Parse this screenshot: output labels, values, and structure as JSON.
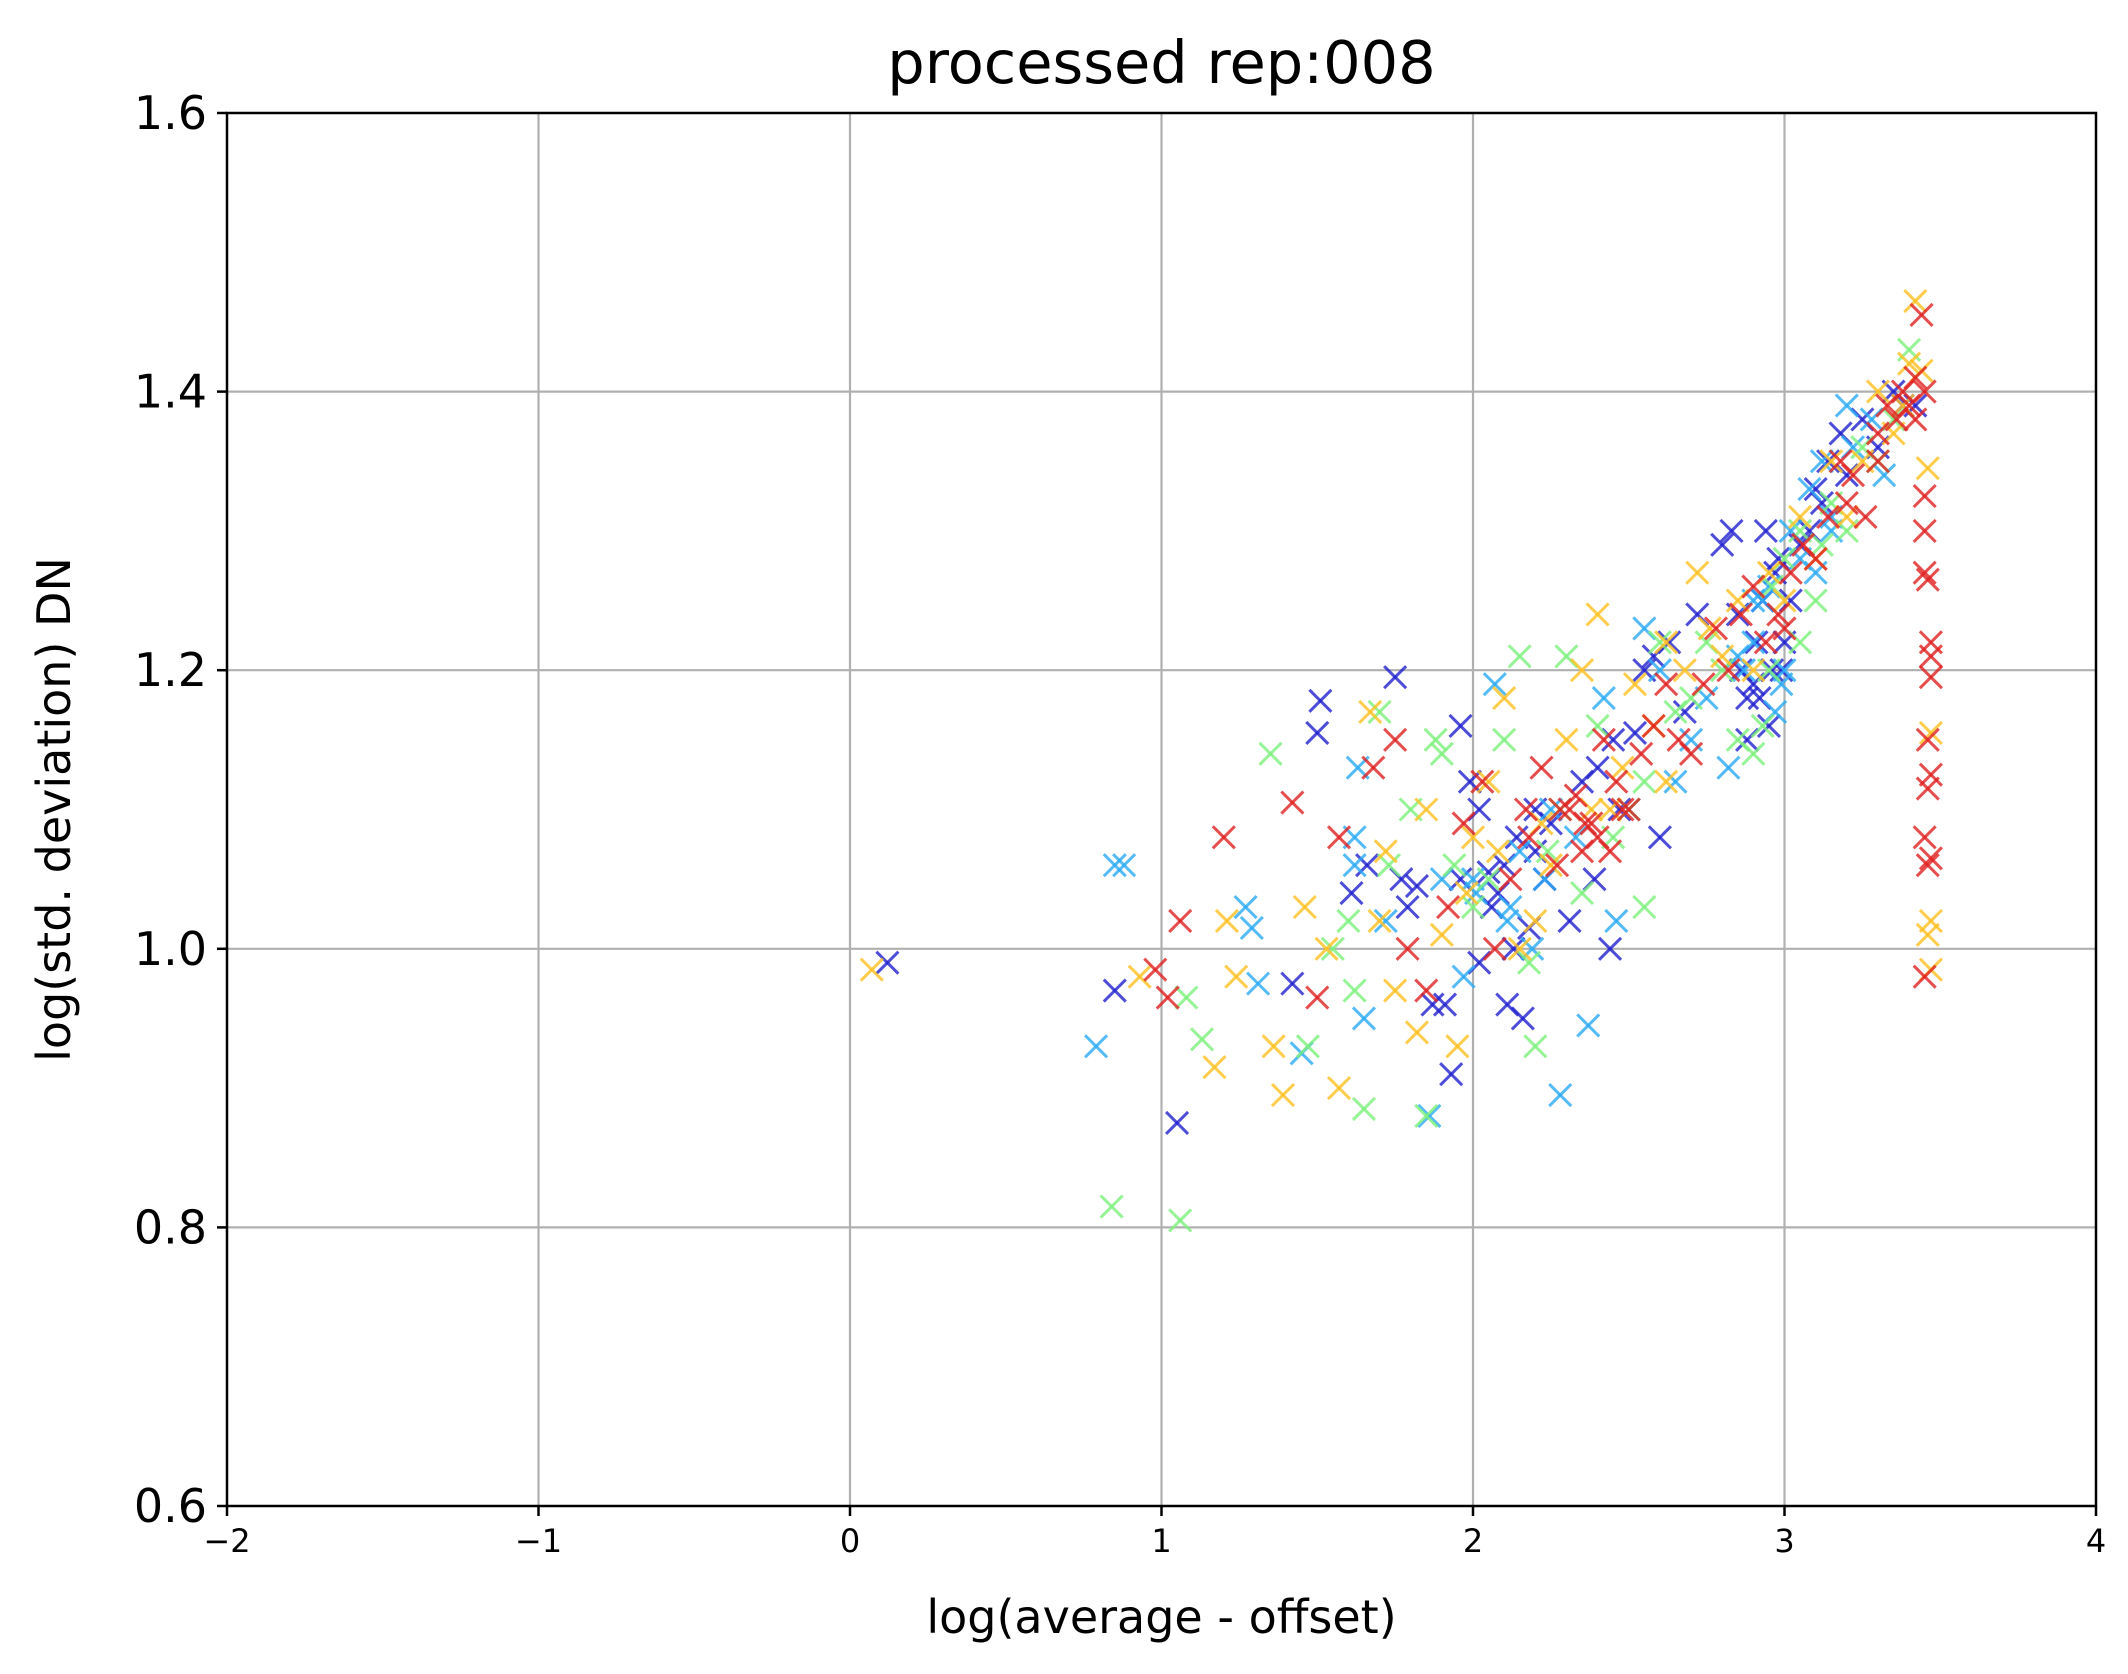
{
  "chart_data": {
    "type": "scatter",
    "title": "processed rep:008",
    "xlabel": "log(average - offset)",
    "ylabel": "log(std. deviation) DN",
    "xlim": [
      -2,
      4
    ],
    "ylim": [
      0.6,
      1.6
    ],
    "xticks": [
      -2,
      -1,
      0,
      1,
      2,
      3,
      4
    ],
    "xtick_labels": [
      "−2",
      "−1",
      "0",
      "1",
      "2",
      "3",
      "4"
    ],
    "yticks": [
      0.6,
      0.8,
      1.0,
      1.2,
      1.4,
      1.6
    ],
    "ytick_labels": [
      "0.6",
      "0.8",
      "1.0",
      "1.2",
      "1.4",
      "1.6"
    ],
    "grid": true,
    "legend": "none",
    "marker": "x",
    "colors": [
      "#2020d0",
      "#2aaaf5",
      "#7cf07c",
      "#ffc020",
      "#e02020"
    ],
    "series": [
      {
        "color": "#2020d0",
        "x": [
          0.12,
          0.85,
          1.05,
          1.42,
          1.5,
          1.51,
          1.61,
          1.66,
          1.75,
          1.77,
          1.79,
          1.82,
          1.87,
          1.93,
          1.96,
          1.99,
          2.02,
          2.05,
          2.08,
          2.1,
          2.11,
          2.13,
          2.16,
          2.18,
          2.2,
          2.25,
          2.31,
          2.35,
          2.39,
          2.44,
          2.47,
          2.52,
          2.55,
          2.58,
          2.6,
          2.63,
          2.68,
          2.72,
          2.8,
          2.83,
          2.85,
          2.86,
          2.88,
          2.9,
          2.91,
          2.93,
          2.94,
          2.95,
          2.96,
          2.97,
          2.98,
          3.0,
          3.02,
          3.05,
          3.08,
          3.1,
          3.14,
          3.18,
          3.2,
          3.25,
          3.3,
          3.35,
          3.38,
          3.42,
          1.96,
          2.06,
          2.14,
          2.23,
          2.88,
          2.92,
          2.99,
          3.12,
          2.02,
          1.91,
          2.2,
          2.4,
          2.45
        ],
        "y": [
          0.99,
          0.97,
          0.875,
          0.975,
          1.155,
          1.178,
          1.04,
          1.06,
          1.195,
          1.05,
          1.03,
          1.045,
          0.96,
          0.91,
          1.16,
          1.12,
          1.1,
          1.055,
          1.04,
          1.06,
          0.96,
          1.0,
          0.95,
          1.015,
          1.07,
          1.09,
          1.02,
          1.12,
          1.05,
          1.0,
          1.1,
          1.155,
          1.2,
          1.21,
          1.08,
          1.22,
          1.17,
          1.24,
          1.29,
          1.3,
          1.24,
          1.2,
          1.18,
          1.19,
          1.22,
          1.25,
          1.3,
          1.16,
          1.2,
          1.27,
          1.28,
          1.22,
          1.25,
          1.29,
          1.3,
          1.33,
          1.35,
          1.37,
          1.34,
          1.38,
          1.36,
          1.4,
          1.39,
          1.39,
          1.05,
          1.03,
          1.08,
          1.05,
          1.15,
          1.18,
          1.2,
          1.32,
          0.99,
          0.96,
          1.1,
          1.13,
          1.15
        ]
      },
      {
        "color": "#2aaaf5",
        "x": [
          0.79,
          0.85,
          0.88,
          1.27,
          1.29,
          1.31,
          1.45,
          1.62,
          1.63,
          1.65,
          1.72,
          1.86,
          1.9,
          1.97,
          2.01,
          2.07,
          2.11,
          2.15,
          2.19,
          2.23,
          2.28,
          2.33,
          2.37,
          2.42,
          2.46,
          2.5,
          2.55,
          2.6,
          2.65,
          2.7,
          2.75,
          2.82,
          2.87,
          2.9,
          2.93,
          2.95,
          2.97,
          2.99,
          3.02,
          3.05,
          3.08,
          3.12,
          3.15,
          3.2,
          3.22,
          3.28,
          3.32,
          1.62,
          2.0,
          2.12,
          2.25,
          2.85,
          2.9,
          3.0,
          3.1,
          3.15
        ],
        "y": [
          0.93,
          1.06,
          1.06,
          1.03,
          1.015,
          0.975,
          0.925,
          1.06,
          1.13,
          0.95,
          1.02,
          0.88,
          1.05,
          0.98,
          1.04,
          1.19,
          1.02,
          1.07,
          1.0,
          1.05,
          0.895,
          1.08,
          0.945,
          1.18,
          1.02,
          1.1,
          1.23,
          1.2,
          1.12,
          1.15,
          1.18,
          1.13,
          1.2,
          1.22,
          1.25,
          1.26,
          1.17,
          1.19,
          1.3,
          1.28,
          1.33,
          1.35,
          1.3,
          1.39,
          1.36,
          1.38,
          1.34,
          1.08,
          1.05,
          1.03,
          1.1,
          1.21,
          1.25,
          1.2,
          1.27,
          1.31
        ]
      },
      {
        "color": "#7cf07c",
        "x": [
          0.84,
          1.06,
          1.08,
          1.13,
          1.35,
          1.47,
          1.55,
          1.62,
          1.65,
          1.7,
          1.73,
          1.8,
          1.85,
          1.88,
          1.9,
          1.94,
          2.0,
          2.05,
          2.1,
          2.15,
          2.2,
          2.24,
          2.3,
          2.35,
          2.4,
          2.45,
          2.5,
          2.55,
          2.6,
          2.65,
          2.7,
          2.75,
          2.8,
          2.85,
          2.9,
          2.93,
          2.96,
          3.0,
          3.05,
          3.1,
          3.15,
          3.2,
          3.25,
          3.3,
          3.35,
          3.4,
          1.6,
          2.18,
          2.28,
          2.55,
          2.95,
          3.05,
          3.12
        ],
        "y": [
          0.815,
          0.805,
          0.965,
          0.935,
          1.14,
          0.93,
          1.0,
          0.97,
          0.885,
          1.17,
          1.06,
          1.1,
          0.88,
          1.15,
          1.14,
          1.06,
          1.03,
          1.05,
          1.15,
          1.21,
          0.93,
          1.07,
          1.21,
          1.04,
          1.16,
          1.08,
          1.1,
          1.03,
          1.22,
          1.17,
          1.18,
          1.22,
          1.2,
          1.15,
          1.14,
          1.16,
          1.26,
          1.28,
          1.3,
          1.25,
          1.32,
          1.3,
          1.36,
          1.35,
          1.38,
          1.43,
          1.02,
          0.99,
          1.1,
          1.12,
          1.2,
          1.22,
          1.29
        ]
      },
      {
        "color": "#ffc020",
        "x": [
          0.07,
          0.93,
          1.17,
          1.21,
          1.24,
          1.36,
          1.39,
          1.46,
          1.53,
          1.57,
          1.67,
          1.72,
          1.75,
          1.82,
          1.85,
          1.9,
          1.95,
          2.0,
          2.05,
          2.1,
          2.15,
          2.2,
          2.25,
          2.3,
          2.35,
          2.4,
          2.44,
          2.48,
          2.52,
          2.58,
          2.62,
          2.68,
          2.72,
          2.76,
          2.8,
          2.85,
          2.9,
          2.95,
          3.0,
          3.05,
          3.1,
          3.15,
          3.2,
          3.25,
          3.3,
          3.35,
          3.38,
          3.4,
          3.42,
          3.44,
          3.46,
          3.47,
          3.47,
          3.46,
          3.47,
          1.7,
          1.98,
          2.08,
          2.22,
          2.38,
          2.62
        ],
        "y": [
          0.985,
          0.98,
          0.915,
          1.02,
          0.98,
          0.93,
          0.895,
          1.03,
          1.0,
          0.9,
          1.17,
          1.07,
          0.97,
          0.94,
          1.1,
          1.01,
          0.93,
          1.08,
          1.12,
          1.18,
          1.0,
          1.02,
          1.06,
          1.15,
          1.2,
          1.24,
          1.1,
          1.13,
          1.19,
          1.16,
          1.22,
          1.2,
          1.27,
          1.23,
          1.21,
          1.25,
          1.2,
          1.27,
          1.25,
          1.31,
          1.28,
          1.35,
          1.31,
          1.35,
          1.4,
          1.37,
          1.39,
          1.42,
          1.465,
          1.415,
          1.345,
          1.155,
          1.02,
          1.01,
          0.985,
          1.02,
          1.04,
          1.07,
          1.09,
          1.1,
          1.12
        ]
      },
      {
        "color": "#e02020",
        "x": [
          0.98,
          1.02,
          1.06,
          1.2,
          1.42,
          1.5,
          1.57,
          1.68,
          1.75,
          1.79,
          1.85,
          1.92,
          1.97,
          2.03,
          2.07,
          2.12,
          2.17,
          2.22,
          2.27,
          2.31,
          2.35,
          2.38,
          2.42,
          2.46,
          2.5,
          2.54,
          2.58,
          2.62,
          2.66,
          2.7,
          2.74,
          2.78,
          2.82,
          2.86,
          2.9,
          2.94,
          2.98,
          3.02,
          3.06,
          3.1,
          3.14,
          3.18,
          3.22,
          3.26,
          3.3,
          3.33,
          3.36,
          3.38,
          3.4,
          3.42,
          3.44,
          3.45,
          3.45,
          3.45,
          3.46,
          3.47,
          3.47,
          3.46,
          3.47,
          3.46,
          3.45,
          3.46,
          3.47,
          3.45,
          2.18,
          2.28,
          2.33,
          2.36,
          2.4,
          2.44,
          2.48,
          3.0,
          3.2,
          3.3,
          3.42,
          3.45,
          3.47
        ],
        "y": [
          0.985,
          0.965,
          1.02,
          1.08,
          1.105,
          0.965,
          1.08,
          1.13,
          1.15,
          1.0,
          0.97,
          1.03,
          1.09,
          1.12,
          1.0,
          1.05,
          1.1,
          1.13,
          1.06,
          1.1,
          1.07,
          1.09,
          1.15,
          1.12,
          1.1,
          1.14,
          1.16,
          1.19,
          1.15,
          1.14,
          1.19,
          1.23,
          1.2,
          1.24,
          1.26,
          1.22,
          1.24,
          1.27,
          1.29,
          1.28,
          1.31,
          1.35,
          1.34,
          1.31,
          1.37,
          1.39,
          1.38,
          1.4,
          1.39,
          1.38,
          1.455,
          1.4,
          1.325,
          1.3,
          1.265,
          1.22,
          1.195,
          1.15,
          1.125,
          1.115,
          1.08,
          1.06,
          1.065,
          0.98,
          1.08,
          1.1,
          1.11,
          1.09,
          1.08,
          1.07,
          1.1,
          1.23,
          1.32,
          1.35,
          1.41,
          1.27,
          1.21
        ]
      }
    ]
  }
}
